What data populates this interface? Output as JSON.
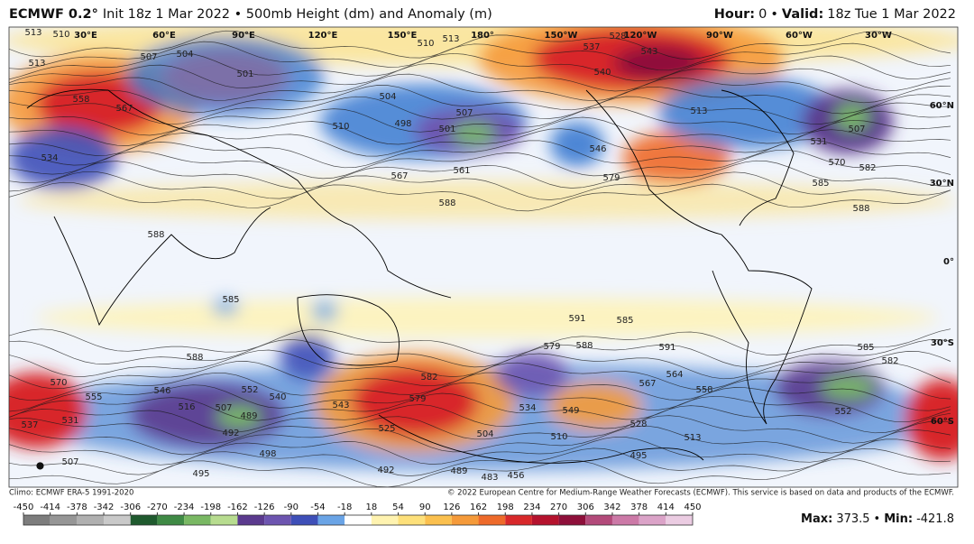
{
  "header": {
    "model": "ECMWF 0.2°",
    "description": "Init 18z 1 Mar 2022 • 500mb Height (dm) and Anomaly (m)",
    "hour_label": "Hour:",
    "hour": 0,
    "separator": "•",
    "valid_label": "Valid:",
    "valid": "18z Tue 1 Mar 2022"
  },
  "map": {
    "longitude_labels": [
      "30°E",
      "60°E",
      "90°E",
      "120°E",
      "150°E",
      "180°",
      "150°W",
      "120°W",
      "90°W",
      "60°W",
      "30°W"
    ],
    "latitude_labels": [
      "60°N",
      "30°N",
      "0°",
      "30°S",
      "60°S"
    ],
    "contour_labels": [
      513,
      510,
      507,
      504,
      501,
      513,
      558,
      567,
      534,
      510,
      504,
      498,
      507,
      501,
      510,
      513,
      537,
      543,
      540,
      528,
      513,
      531,
      507,
      570,
      582,
      585,
      588,
      561,
      567,
      588,
      579,
      546,
      588,
      585,
      585,
      591,
      588,
      591,
      579,
      588,
      585,
      582,
      546,
      516,
      507,
      489,
      492,
      552,
      540,
      543,
      582,
      579,
      525,
      570,
      555,
      537,
      531,
      534,
      549,
      564,
      567,
      558,
      528,
      513,
      504,
      510,
      495,
      498,
      495,
      492,
      489,
      483,
      456,
      507,
      552
    ]
  },
  "footer": {
    "climo": "Climo: ECMWF ERA-5 1991-2020",
    "copyright": "© 2022 European Centre for Medium-Range Weather Forecasts (ECMWF). This service is based on data and products of the ECMWF."
  },
  "colorbar": {
    "ticks": [
      -450,
      -414,
      -378,
      -342,
      -306,
      -270,
      -234,
      -198,
      -162,
      -126,
      -90,
      -54,
      -18,
      18,
      54,
      90,
      126,
      162,
      198,
      234,
      270,
      306,
      342,
      378,
      414,
      450
    ],
    "colors": [
      "#7d7d7d",
      "#969696",
      "#b0b0b0",
      "#c9c9c9",
      "#1f5a2e",
      "#3f8a45",
      "#79b863",
      "#b7dc8f",
      "#5b3a8e",
      "#6d55b0",
      "#3e4fb8",
      "#6aa4e6",
      "#ffffff",
      "#fff3b0",
      "#fde07a",
      "#fbc04e",
      "#f59a3a",
      "#ee6a2a",
      "#d8282a",
      "#b5122d",
      "#8e0f3a",
      "#b34a7a",
      "#cc79a7",
      "#dba3c8",
      "#ebcce2"
    ]
  },
  "stats": {
    "max_label": "Max:",
    "max": 373.5,
    "separator": "•",
    "min_label": "Min:",
    "min": -421.8
  }
}
